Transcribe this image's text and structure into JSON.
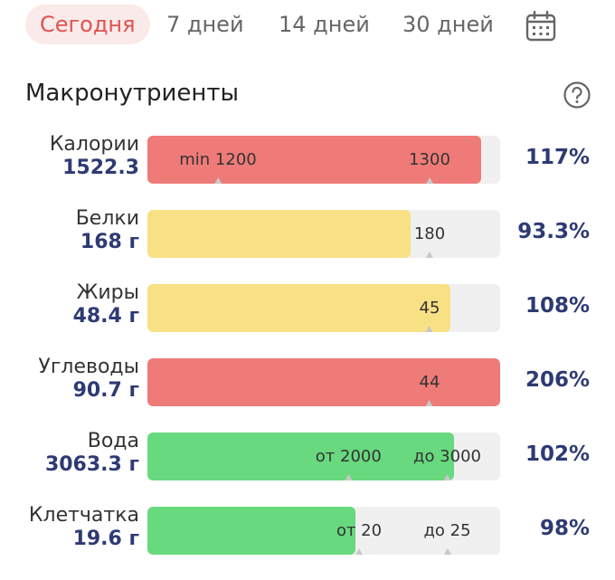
{
  "tabs": [
    {
      "label": "Сегодня",
      "active": true
    },
    {
      "label": "7 дней",
      "active": false
    },
    {
      "label": "14 дней",
      "active": false
    },
    {
      "label": "30 дней",
      "active": false
    }
  ],
  "section": {
    "title": "Макронутриенты"
  },
  "colors": {
    "red": "#ef7b78",
    "yellow": "#f8e085",
    "green": "#68d97e",
    "track": "#f0f0f0",
    "value": "#2e3a73",
    "accent": "#e05252"
  },
  "nutrients": [
    {
      "name": "Калории",
      "value": "1522.3",
      "fill_fraction": 0.945,
      "color": "red",
      "markers": [
        {
          "text": "min 1200",
          "pos": 0.2
        },
        {
          "text": "1300",
          "pos": 0.8
        }
      ],
      "percent": "117%"
    },
    {
      "name": "Белки",
      "value": "168 г",
      "fill_fraction": 0.745,
      "color": "yellow",
      "markers": [
        {
          "text": "180",
          "pos": 0.8
        }
      ],
      "percent": "93.3%"
    },
    {
      "name": "Жиры",
      "value": "48.4 г",
      "fill_fraction": 0.86,
      "color": "yellow",
      "markers": [
        {
          "text": "45",
          "pos": 0.8
        }
      ],
      "percent": "108%"
    },
    {
      "name": "Углеводы",
      "value": "90.7 г",
      "fill_fraction": 1.0,
      "color": "red",
      "markers": [
        {
          "text": "44",
          "pos": 0.8
        }
      ],
      "percent": "206%"
    },
    {
      "name": "Вода",
      "value": "3063.3 г",
      "fill_fraction": 0.87,
      "color": "green",
      "markers": [
        {
          "text": "от 2000",
          "pos": 0.57
        },
        {
          "text": "до 3000",
          "pos": 0.85
        }
      ],
      "percent": "102%"
    },
    {
      "name": "Клетчатка",
      "value": "19.6 г",
      "fill_fraction": 0.59,
      "color": "green",
      "markers": [
        {
          "text": "от 20",
          "pos": 0.6
        },
        {
          "text": "до 25",
          "pos": 0.85
        }
      ],
      "percent": "98%"
    }
  ]
}
